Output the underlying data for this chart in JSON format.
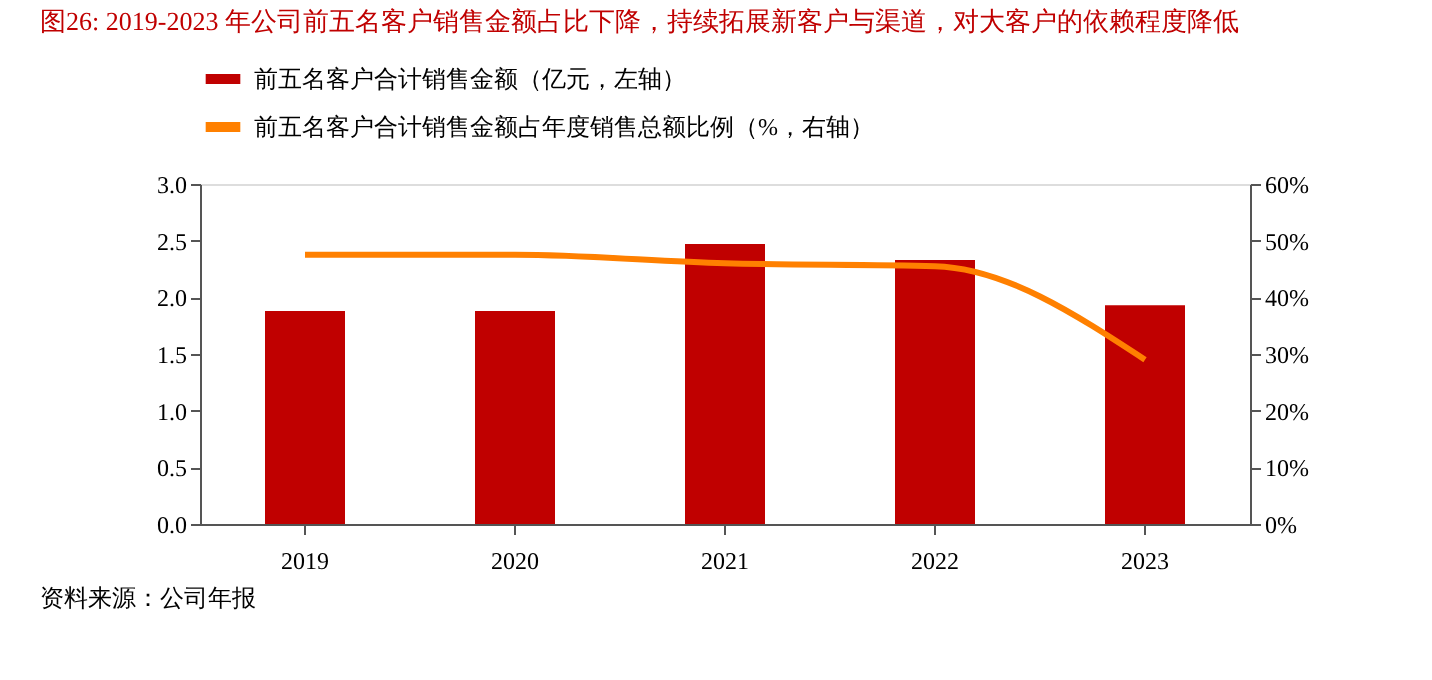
{
  "chart_data": {
    "type": "bar",
    "title": "图26:   2019-2023 年公司前五名客户销售金额占比下降，持续拓展新客户与渠道，对大客户的依赖程度降低",
    "categories": [
      "2019",
      "2020",
      "2021",
      "2022",
      "2023"
    ],
    "series": [
      {
        "name": "前五名客户合计销售金额（亿元，左轴）",
        "color": "#c00000",
        "values": [
          1.88,
          1.88,
          2.47,
          2.33,
          1.93
        ]
      },
      {
        "name": "前五名客户合计销售金额占年度销售总额比例（%，右轴）",
        "color": "#ff8000",
        "type": "line",
        "axis": "y2",
        "values": [
          47.5,
          47.5,
          46,
          45.5,
          29
        ]
      }
    ],
    "ylim": [
      0,
      3
    ],
    "yticks": [
      {
        "value": 0,
        "label": "0.0"
      },
      {
        "value": 0.5,
        "label": "0.5"
      },
      {
        "value": 1,
        "label": "1.0"
      },
      {
        "value": 1.5,
        "label": "1.5"
      },
      {
        "value": 2,
        "label": "2.0"
      },
      {
        "value": 2.5,
        "label": "2.5"
      },
      {
        "value": 3,
        "label": "3.0"
      }
    ],
    "y2lim": [
      0,
      60
    ],
    "y2ticks": [
      {
        "value": 0,
        "label": "0%"
      },
      {
        "value": 10,
        "label": "10%"
      },
      {
        "value": 20,
        "label": "20%"
      },
      {
        "value": 30,
        "label": "30%"
      },
      {
        "value": 40,
        "label": "40%"
      },
      {
        "value": 50,
        "label": "50%"
      },
      {
        "value": 60,
        "label": "60%"
      }
    ],
    "legend": "top",
    "grid": false,
    "annotations": [
      "资料来源：公司年报"
    ]
  }
}
